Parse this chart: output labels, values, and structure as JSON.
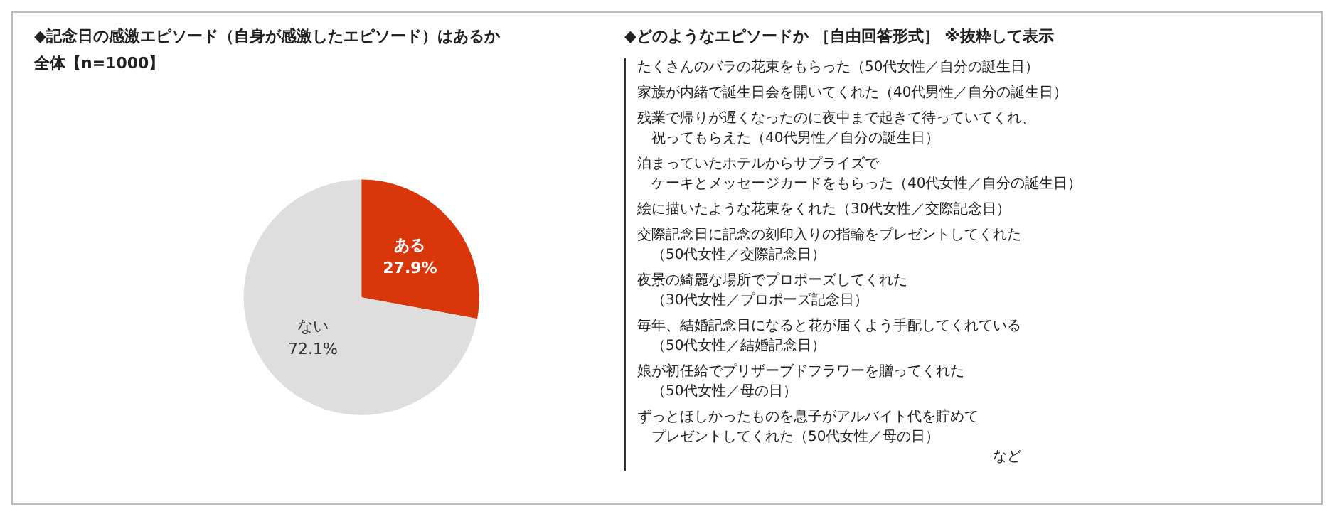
{
  "chart_data": [
    {
      "type": "pie",
      "title": "◆記念日の感激エピソード（自身が感激したエピソード）はあるか",
      "subtitle": "全体【n=1000】",
      "categories": [
        "ある",
        "ない"
      ],
      "values": [
        27.9,
        72.1
      ],
      "colors": [
        "#d9360b",
        "#dedede"
      ],
      "value_labels": [
        "27.9%",
        "72.1%"
      ],
      "legend": false
    },
    {
      "type": "other",
      "title": "◆どのようなエピソードか ［自由回答形式］ ※抜粋して表示",
      "annotations": [
        "たくさんのバラの花束をもらった（50代女性／自分の誕生日）",
        "家族が内緒で誕生日会を開いてくれた（40代男性／自分の誕生日）",
        "残業で帰りが遅くなったのに夜中まで起きて待っていてくれ、",
        "　祝ってもらえた（40代男性／自分の誕生日）",
        "泊まっていたホテルからサプライズで",
        "　ケーキとメッセージカードをもらった（40代女性／自分の誕生日）",
        "絵に描いたような花束をくれた（30代女性／交際記念日）",
        "交際記念日に記念の刻印入りの指輪をプレゼントしてくれた",
        "　（50代女性／交際記念日）",
        "夜景の綺麗な場所でプロポーズしてくれた",
        "　（30代女性／プロポーズ記念日）",
        "毎年、結婚記念日になると花が届くよう手配してくれている",
        "　（50代女性／結婚記念日）",
        "娘が初任給でプリザーブドフラワーを贈ってくれた",
        "　（50代女性／母の日）",
        "ずっとほしかったものを息子がアルバイト代を貯めて",
        "　プレゼントしてくれた（50代女性／母の日）",
        "など"
      ]
    }
  ]
}
